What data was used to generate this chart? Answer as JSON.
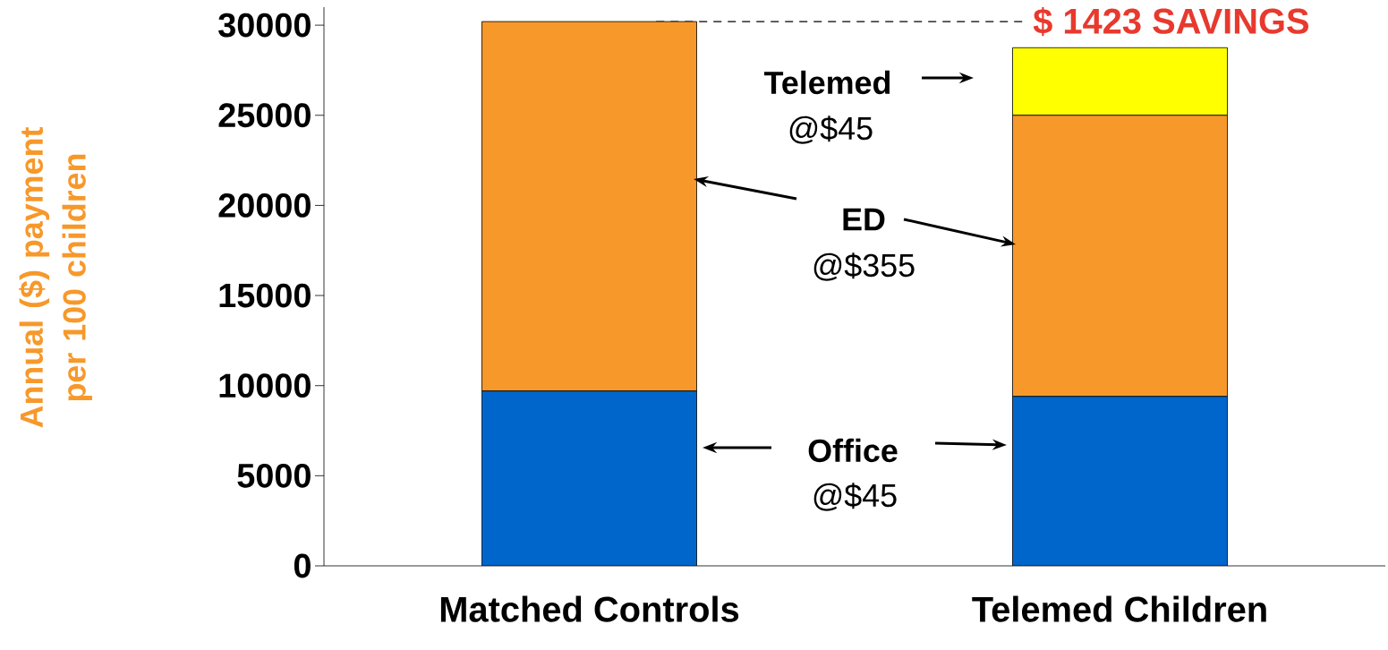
{
  "chart_data": {
    "type": "bar",
    "stacked": true,
    "categories": [
      "Matched Controls",
      "Telemed Children"
    ],
    "series": [
      {
        "color": "#0066cc",
        "values": [
          9700,
          9400
        ]
      },
      {
        "color": "#f7982a",
        "values": [
          20500,
          15600
        ]
      },
      {
        "color": "#ffff00",
        "values": [
          null,
          3750
        ]
      }
    ],
    "ylabel": "Annual ($) payment per 100 children",
    "ylim": [
      0,
      31000
    ],
    "yticks": [
      0,
      5000,
      10000,
      15000,
      20000,
      25000,
      30000
    ],
    "ref_lines": [
      {
        "axis": "y",
        "value": 30200,
        "label": "$ 1423 SAVINGS",
        "color": "#000000",
        "line_style": "dashed"
      }
    ],
    "annotations": [
      "Office",
      "@$45",
      "ED",
      "@$355",
      "Telemed",
      "@$45"
    ],
    "grid": false
  }
}
